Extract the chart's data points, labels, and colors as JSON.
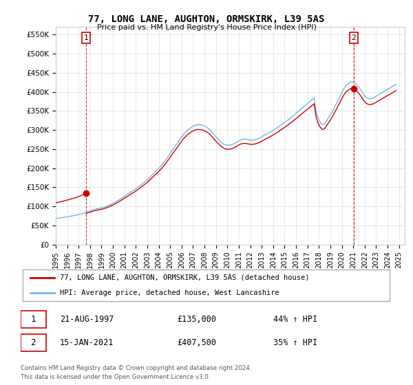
{
  "title": "77, LONG LANE, AUGHTON, ORMSKIRK, L39 5AS",
  "subtitle": "Price paid vs. HM Land Registry's House Price Index (HPI)",
  "xlim_left": 1995.0,
  "xlim_right": 2025.5,
  "ylim_bottom": 0,
  "ylim_top": 570000,
  "yticks": [
    0,
    50000,
    100000,
    150000,
    200000,
    250000,
    300000,
    350000,
    400000,
    450000,
    500000,
    550000
  ],
  "ytick_labels": [
    "£0",
    "£50K",
    "£100K",
    "£150K",
    "£200K",
    "£250K",
    "£300K",
    "£350K",
    "£400K",
    "£450K",
    "£500K",
    "£550K"
  ],
  "xticks": [
    1995,
    1996,
    1997,
    1998,
    1999,
    2000,
    2001,
    2002,
    2003,
    2004,
    2005,
    2006,
    2007,
    2008,
    2009,
    2010,
    2011,
    2012,
    2013,
    2014,
    2015,
    2016,
    2017,
    2018,
    2019,
    2020,
    2021,
    2022,
    2023,
    2024,
    2025
  ],
  "sale1_x": 1997.64,
  "sale1_y": 135000,
  "sale1_label": "1",
  "sale1_date": "21-AUG-1997",
  "sale1_price": "£135,000",
  "sale1_hpi": "44% ↑ HPI",
  "sale2_x": 2021.04,
  "sale2_y": 407500,
  "sale2_label": "2",
  "sale2_date": "15-JAN-2021",
  "sale2_price": "£407,500",
  "sale2_hpi": "35% ↑ HPI",
  "hpi_color": "#6eb6e8",
  "price_color": "#cc0000",
  "vline_color": "#cc0000",
  "dot_color": "#cc0000",
  "background_color": "#ffffff",
  "grid_color": "#dddddd",
  "legend_label_price": "77, LONG LANE, AUGHTON, ORMSKIRK, L39 5AS (detached house)",
  "legend_label_hpi": "HPI: Average price, detached house, West Lancashire",
  "footer1": "Contains HM Land Registry data © Crown copyright and database right 2024.",
  "footer2": "This data is licensed under the Open Government Licence v3.0."
}
